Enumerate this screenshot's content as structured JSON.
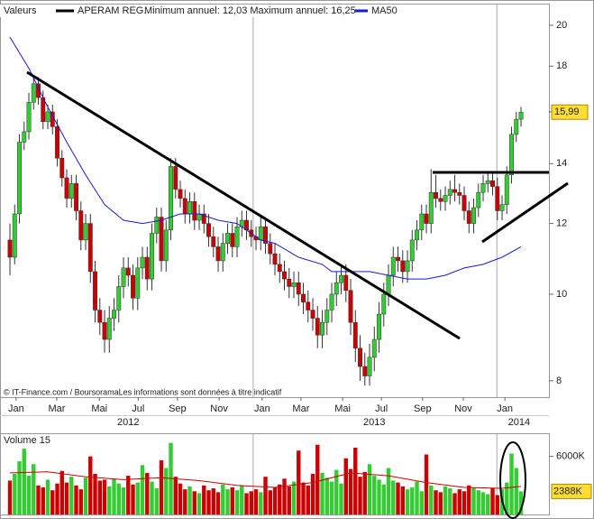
{
  "chart_data": [
    {
      "type": "candlestick",
      "header_label": "Valeurs",
      "series_name": "APERAM REG.",
      "subtitle": "Minimum annuel: 12,03 Maximum annuel: 16,25",
      "footer": "© IT-Finance.com / BoursoramaLes informations sont données à titre indicatif",
      "up_color": "#33cc33",
      "down_color": "#cc0000",
      "x": [
        0,
        1,
        2,
        3,
        4,
        5,
        6,
        7,
        8,
        9,
        10,
        11,
        12,
        13,
        14,
        15,
        16,
        17,
        18,
        19,
        20,
        21,
        22,
        23,
        24,
        25,
        26,
        27,
        28,
        29,
        30,
        31,
        32,
        33,
        34,
        35,
        36,
        37,
        38,
        39,
        40,
        41,
        42,
        43,
        44,
        45,
        46,
        47,
        48,
        49,
        50,
        51,
        52,
        53,
        54,
        55,
        56,
        57,
        58,
        59,
        60,
        61,
        62,
        63,
        64,
        65,
        66,
        67,
        68,
        69,
        70,
        71,
        72,
        73,
        74,
        75,
        76,
        77,
        78,
        79,
        80,
        81,
        82,
        83,
        84,
        85,
        86,
        87,
        88,
        89,
        90,
        91,
        92,
        93,
        94,
        95,
        96,
        97,
        98,
        99,
        100,
        101,
        102,
        103,
        104,
        105,
        106,
        107,
        108
      ],
      "open": [
        11.5,
        11.0,
        12.3,
        14.8,
        15.2,
        16.4,
        17.2,
        16.6,
        15.6,
        16.0,
        15.4,
        14.2,
        13.5,
        12.8,
        13.3,
        12.4,
        11.5,
        12.0,
        10.6,
        9.6,
        9.3,
        8.9,
        9.4,
        9.6,
        10.2,
        10.7,
        10.5,
        9.9,
        10.7,
        11.0,
        10.4,
        11.7,
        12.2,
        10.9,
        11.8,
        13.9,
        13.1,
        12.8,
        12.3,
        12.7,
        12.1,
        12.3,
        12.0,
        11.6,
        11.3,
        10.9,
        11.4,
        11.7,
        11.3,
        11.9,
        12.1,
        11.8,
        11.6,
        11.5,
        11.9,
        11.4,
        11.1,
        10.8,
        10.6,
        10.4,
        10.2,
        10.3,
        10.0,
        9.8,
        9.6,
        9.4,
        9.0,
        9.3,
        9.6,
        10.0,
        10.3,
        10.5,
        10.1,
        9.3,
        8.7,
        8.3,
        8.1,
        8.5,
        8.9,
        9.5,
        10.0,
        10.5,
        11.0,
        10.9,
        10.6,
        10.9,
        11.5,
        11.8,
        12.3,
        12.0,
        13.0,
        12.8,
        12.7,
        12.9,
        13.1,
        13.0,
        12.9,
        12.4,
        12.0,
        12.5,
        13.0,
        13.3,
        13.4,
        13.2,
        12.4,
        12.6,
        13.6,
        15.1,
        15.7
      ],
      "high": [
        12.0,
        12.6,
        15.1,
        15.6,
        16.8,
        17.6,
        17.5,
        16.9,
        16.3,
        16.3,
        15.7,
        14.5,
        13.8,
        13.6,
        13.6,
        12.7,
        12.3,
        12.3,
        10.9,
        9.9,
        9.6,
        9.7,
        9.9,
        10.5,
        11.0,
        11.0,
        10.8,
        11.0,
        11.3,
        11.3,
        12.0,
        12.5,
        12.5,
        12.1,
        14.2,
        14.2,
        13.4,
        13.1,
        13.0,
        13.0,
        12.6,
        12.6,
        12.3,
        11.9,
        11.6,
        11.7,
        12.0,
        12.0,
        12.2,
        12.4,
        12.4,
        12.1,
        11.9,
        12.2,
        12.2,
        11.7,
        11.4,
        11.1,
        10.9,
        10.7,
        10.6,
        10.6,
        10.3,
        10.1,
        9.9,
        9.7,
        9.6,
        9.9,
        10.3,
        10.6,
        10.8,
        10.8,
        10.4,
        9.6,
        9.0,
        8.6,
        8.8,
        9.2,
        9.8,
        10.3,
        10.8,
        11.3,
        11.3,
        11.2,
        11.2,
        11.8,
        12.1,
        12.6,
        12.6,
        13.8,
        13.6,
        13.1,
        13.2,
        13.4,
        13.6,
        13.3,
        13.2,
        12.7,
        12.8,
        13.3,
        13.6,
        13.7,
        13.7,
        13.5,
        12.9,
        13.9,
        15.4,
        16.0,
        16.2
      ],
      "low": [
        10.5,
        10.8,
        12.0,
        14.5,
        14.9,
        16.1,
        16.3,
        15.3,
        15.3,
        15.1,
        13.9,
        13.2,
        12.5,
        12.5,
        12.1,
        11.2,
        11.2,
        10.3,
        9.3,
        9.0,
        8.6,
        8.6,
        9.1,
        9.3,
        9.9,
        10.2,
        9.6,
        9.6,
        10.4,
        10.1,
        10.1,
        11.4,
        10.6,
        10.6,
        11.5,
        12.8,
        12.5,
        12.0,
        12.0,
        11.8,
        11.8,
        11.7,
        11.3,
        11.0,
        10.6,
        10.6,
        11.1,
        11.0,
        11.0,
        11.6,
        11.5,
        11.3,
        11.2,
        11.2,
        11.1,
        10.8,
        10.5,
        10.3,
        10.1,
        9.9,
        9.9,
        9.7,
        9.5,
        9.3,
        9.1,
        8.7,
        8.7,
        9.0,
        9.3,
        9.7,
        10.0,
        9.8,
        9.0,
        8.4,
        8.0,
        7.9,
        7.9,
        8.2,
        8.6,
        9.2,
        9.7,
        10.2,
        10.6,
        10.3,
        10.3,
        10.6,
        11.2,
        11.5,
        11.7,
        11.7,
        12.5,
        12.4,
        12.4,
        12.6,
        12.7,
        12.6,
        12.1,
        11.7,
        11.7,
        12.2,
        12.7,
        13.0,
        12.9,
        12.1,
        12.1,
        12.3,
        13.3,
        14.8,
        15.4
      ],
      "close": [
        11.0,
        12.3,
        14.8,
        15.2,
        16.4,
        17.2,
        16.6,
        15.6,
        16.0,
        15.4,
        14.2,
        13.5,
        12.8,
        13.3,
        12.4,
        11.5,
        12.0,
        10.6,
        9.6,
        9.3,
        8.9,
        9.4,
        9.6,
        10.2,
        10.7,
        10.5,
        9.9,
        10.7,
        11.0,
        10.4,
        11.7,
        12.2,
        10.9,
        11.8,
        13.9,
        13.1,
        12.8,
        12.3,
        12.7,
        12.1,
        12.3,
        12.0,
        11.6,
        11.3,
        10.9,
        11.4,
        11.7,
        11.3,
        11.9,
        12.1,
        11.8,
        11.6,
        11.5,
        11.9,
        11.4,
        11.1,
        10.8,
        10.6,
        10.4,
        10.2,
        10.3,
        10.0,
        9.8,
        9.6,
        9.4,
        9.0,
        9.3,
        9.6,
        10.0,
        10.3,
        10.5,
        10.1,
        9.3,
        8.7,
        8.3,
        8.1,
        8.5,
        8.9,
        9.5,
        10.0,
        10.5,
        11.0,
        10.9,
        10.6,
        10.9,
        11.5,
        11.8,
        12.3,
        12.0,
        13.0,
        12.8,
        12.7,
        12.9,
        13.1,
        13.0,
        12.9,
        12.4,
        12.0,
        12.5,
        13.0,
        13.3,
        13.4,
        13.2,
        12.4,
        12.6,
        13.6,
        15.1,
        15.7,
        15.99
      ],
      "overlay": {
        "name": "MA50",
        "color": "#1a1acc",
        "x": [
          0,
          4,
          8,
          12,
          16,
          20,
          24,
          28,
          32,
          36,
          40,
          44,
          48,
          53,
          56,
          61,
          66,
          68,
          72,
          76,
          80,
          84,
          88,
          92,
          96,
          100,
          104,
          108
        ],
        "values": [
          19.4,
          17.9,
          16.2,
          14.8,
          13.6,
          12.6,
          12.1,
          12.0,
          12.1,
          12.3,
          12.3,
          12.1,
          12.0,
          11.5,
          11.4,
          11.0,
          10.8,
          10.6,
          10.6,
          10.6,
          10.5,
          10.4,
          10.4,
          10.5,
          10.7,
          10.8,
          11.0,
          11.3
        ]
      },
      "xlim": [
        -2.1,
        113.9
      ],
      "ylim": [
        7.67,
        21.1
      ],
      "log_scale": true,
      "yticks": [
        8,
        10,
        12,
        14,
        16,
        18,
        20
      ],
      "xticks": [
        {
          "value": 1.3,
          "label": "Jan"
        },
        {
          "value": 9.9,
          "label": "Mar"
        },
        {
          "value": 18.9,
          "label": "Mai"
        },
        {
          "value": 27.1,
          "label": "Jul"
        },
        {
          "value": 35.4,
          "label": "Sep"
        },
        {
          "value": 44.2,
          "label": "Nov"
        },
        {
          "value": 53.3,
          "label": "Jan"
        },
        {
          "value": 61.5,
          "label": "Mar"
        },
        {
          "value": 70.3,
          "label": "Mai"
        },
        {
          "value": 78.5,
          "label": "Jul"
        },
        {
          "value": 87.2,
          "label": "Sep"
        },
        {
          "value": 95.8,
          "label": "Nov"
        },
        {
          "value": 104.6,
          "label": "Jan"
        }
      ],
      "year_ticks": [
        {
          "value": 25,
          "label": "2012"
        },
        {
          "value": 77,
          "label": "2013"
        },
        {
          "value": 107.6,
          "label": "2014"
        }
      ],
      "year_lines": [
        51.4,
        102.9
      ],
      "last_price": {
        "value": 15.99,
        "label": "15,99"
      }
    },
    {
      "type": "volume",
      "title": "Volume 15",
      "values": [
        3500,
        4200,
        5500,
        6800,
        4000,
        5200,
        3000,
        2800,
        3600,
        2500,
        3200,
        4500,
        3300,
        3900,
        3000,
        2600,
        3800,
        6000,
        4200,
        3500,
        3600,
        2900,
        3700,
        3200,
        2800,
        4000,
        3100,
        3300,
        5100,
        4300,
        3400,
        2700,
        5600,
        4800,
        7400,
        3900,
        3200,
        2600,
        2900,
        2400,
        2200,
        3000,
        2500,
        2700,
        2300,
        3100,
        2600,
        2800,
        2500,
        3000,
        2200,
        2400,
        2600,
        2300,
        3900,
        2500,
        2800,
        3100,
        3700,
        2900,
        3400,
        6600,
        3300,
        3000,
        4200,
        7200,
        4300,
        3800,
        3400,
        4600,
        3200,
        5800,
        4700,
        6900,
        3900,
        4400,
        5200,
        4000,
        3600,
        3100,
        4800,
        3500,
        3300,
        2900,
        2600,
        2800,
        3400,
        2400,
        6200,
        3000,
        2500,
        2300,
        2900,
        2700,
        2200,
        2600,
        2400,
        3000,
        2800,
        2500,
        2300,
        2100,
        2700,
        2000,
        2600,
        3300,
        6300,
        4800,
        2388
      ],
      "ma_color": "#cc0000",
      "ma_x": [
        0,
        8,
        16,
        24,
        32,
        40,
        48,
        56,
        64,
        72,
        80,
        88,
        96,
        104,
        108
      ],
      "ma_values": [
        4300,
        4400,
        3900,
        3600,
        3800,
        3500,
        3000,
        2800,
        3300,
        4300,
        4000,
        3300,
        2800,
        2700,
        2900
      ],
      "ylim": [
        0,
        8300
      ],
      "yticks": [
        {
          "value": 6000,
          "label": "6000K"
        }
      ],
      "last_value": {
        "value": 2388,
        "label": "2388K"
      }
    }
  ]
}
